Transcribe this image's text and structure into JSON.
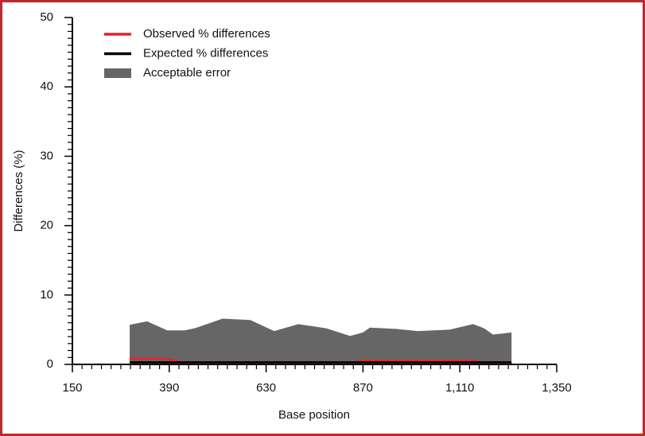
{
  "chart_data": {
    "type": "line",
    "xlabel": "Base position",
    "ylabel": "Differences (%)",
    "x": [
      292,
      335,
      385,
      428,
      453,
      522,
      591,
      650,
      710,
      779,
      838,
      870,
      887,
      955,
      1005,
      1084,
      1143,
      1170,
      1192,
      1238
    ],
    "series": [
      {
        "name": "Observed % differences",
        "color": "#e8202a",
        "kind": "line",
        "values": [
          0.8,
          0.8,
          0.8,
          0.2,
          0.2,
          0.2,
          0.2,
          0.2,
          0.2,
          0.2,
          0.2,
          0.5,
          0.5,
          0.5,
          0.5,
          0.5,
          0.5,
          0.2,
          0.2,
          0.2
        ]
      },
      {
        "name": "Expected % differences",
        "color": "#000000",
        "kind": "line",
        "values": [
          0.3,
          0.3,
          0.3,
          0.3,
          0.3,
          0.3,
          0.3,
          0.3,
          0.3,
          0.3,
          0.3,
          0.3,
          0.3,
          0.3,
          0.3,
          0.3,
          0.3,
          0.3,
          0.3,
          0.3
        ]
      },
      {
        "name": "Acceptable error",
        "color": "#666666",
        "kind": "area",
        "values": [
          5.7,
          6.2,
          4.9,
          4.9,
          5.2,
          6.6,
          6.4,
          4.8,
          5.8,
          5.2,
          4.1,
          4.6,
          5.3,
          5.1,
          4.8,
          5.0,
          5.8,
          5.2,
          4.3,
          4.6
        ]
      }
    ],
    "xlim": [
      150,
      1350
    ],
    "xticks": [
      150,
      390,
      630,
      870,
      {
        "value": 1110,
        "label": "1,110"
      },
      {
        "value": 1350,
        "label": "1,350"
      }
    ],
    "ylim": [
      0,
      50
    ],
    "yticks": [
      0,
      10,
      20,
      30,
      40,
      50
    ],
    "legend": "upper left"
  }
}
